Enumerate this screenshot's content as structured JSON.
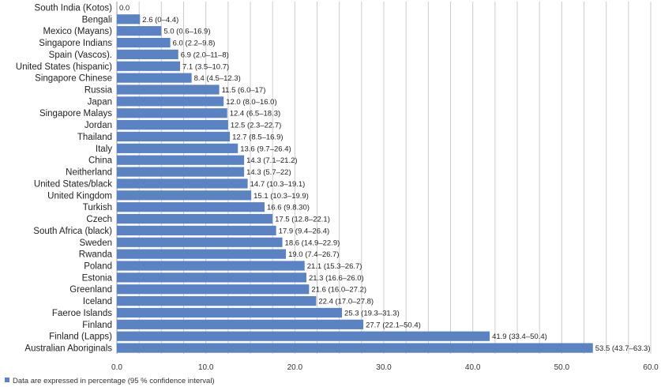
{
  "chart_data": {
    "type": "bar",
    "orientation": "horizontal",
    "categories": [
      "South India (Kotos)",
      "Bengali",
      "Mexico (Mayans)",
      "Singapore Indians",
      "Spain (Vascos).",
      "United States (hispanic)",
      "Singapore Chinese",
      "Russia",
      "Japan",
      "Singapore Malays",
      "Jordan",
      "Thailand",
      "Italy",
      "China",
      "Neitherland",
      "United States/black",
      "United Kingdom",
      "Turkish",
      "Czech",
      "South Africa (black)",
      "Sweden",
      "Rwanda",
      "Poland",
      "Estonia",
      "Greenland",
      "Iceland",
      "Faeroe Islands",
      "Finland",
      "Finland (Lapps)",
      "Australian Aboriginals"
    ],
    "values": [
      0.0,
      2.6,
      5.0,
      6.0,
      6.9,
      7.1,
      8.4,
      11.5,
      12.0,
      12.4,
      12.5,
      12.7,
      13.6,
      14.3,
      14.3,
      14.7,
      15.1,
      16.6,
      17.5,
      17.9,
      18.6,
      19.0,
      21.1,
      21.3,
      21.6,
      22.4,
      25.3,
      27.7,
      41.9,
      53.5
    ],
    "data_labels": [
      "0.0",
      "2.6 (0–4.4)",
      "5.0 (0.6–16.9)",
      "6.0 (2.2–9.8)",
      "6.9 (2.0–11–8)",
      "7.1 (3.5–10.7)",
      "8.4 (4.5–12.3)",
      "11.5 (6.0–17)",
      "12.0 (8.0–16.0)",
      "12.4 (6.5–18.3)",
      "12.5 (2.3–22.7)",
      "12.7 (8.5–16.9)",
      "13.6 (9.7–26.4)",
      "14.3 (7.1–21.2)",
      "14.3 (5.7–22)",
      "14.7 (10.3–19.1)",
      "15.1 (10.3–19.9)",
      "16.6 (9.8.30)",
      "17.5 (12.8–22.1)",
      "17.9 (9.4–26.4)",
      "18.6 (14.9–22.9)",
      "19.0 (7.4–26.7)",
      "21.1 (15.3–26.7)",
      "21.3 (16.6–26.0)",
      "21.6 (16.0–27.2)",
      "22.4 (17.0–27.8)",
      "25.3 (19.3–31.3)",
      "27.7 (22.1–50.4)",
      "41.9 (33.4–50.4)",
      "53.5 (43.7–63.3)"
    ],
    "xlim": [
      0,
      60
    ],
    "xticks": [
      "0.0",
      "10.0",
      "20.0",
      "30.0",
      "40.0",
      "50.0",
      "60.0"
    ],
    "grid": "vertical",
    "legend_position": "bottom-left",
    "legend_text": "Data are expressed in percentage (95 % confidence interval)",
    "bar_color": "#5b83c4",
    "grid_color": "#cccccc"
  }
}
